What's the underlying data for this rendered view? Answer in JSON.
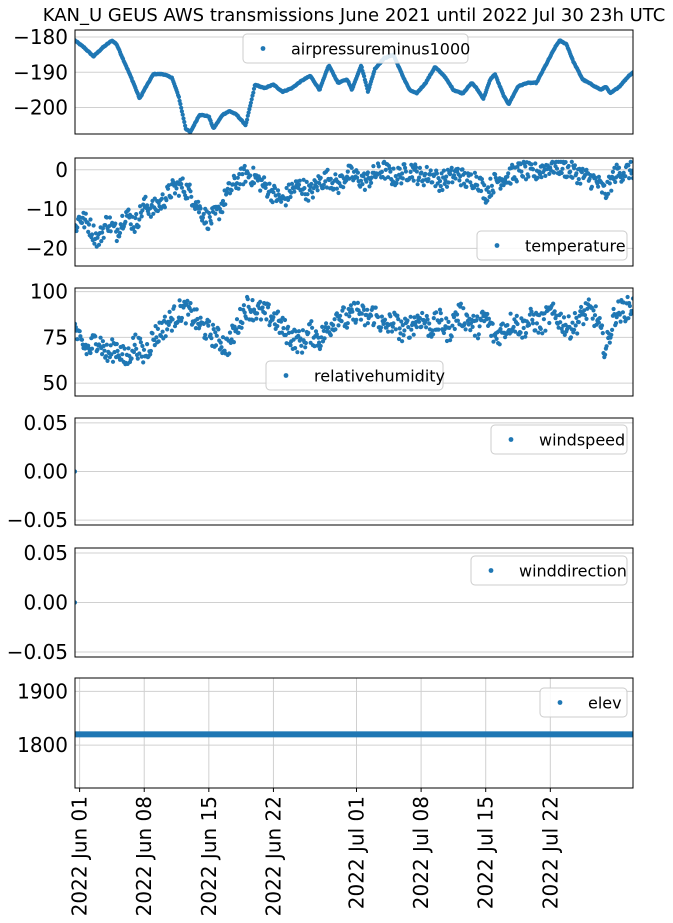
{
  "title": "KAN_U GEUS AWS transmissions June 2021 until 2022 Jul 30 23h UTC",
  "colors": {
    "series": "#1f77b4",
    "grid": "#d0d0d0"
  },
  "chart_data": {
    "type": "scatter",
    "x_axis": {
      "type": "date",
      "range": [
        "2022-05-31T12:00",
        "2022-07-30T23:00"
      ],
      "ticks": [
        "2022-06-01",
        "2022-06-08",
        "2022-06-15",
        "2022-06-22",
        "2022-07-01",
        "2022-07-08",
        "2022-07-15",
        "2022-07-22"
      ],
      "tick_labels": [
        "2022 Jun 01",
        "2022 Jun 08",
        "2022 Jun 15",
        "2022 Jun 22",
        "2022 Jul 01",
        "2022 Jul 08",
        "2022 Jul 15",
        "2022 Jul 22"
      ],
      "grid": true
    },
    "panels": [
      {
        "series": "airpressureminus1000",
        "legend": "top-center",
        "ylim": [
          -207.5,
          -178
        ],
        "yticks": [
          -180,
          -190,
          -200
        ],
        "ytick_labels": [
          "−180",
          "−190",
          "−200"
        ],
        "grid": true,
        "key_points": [
          [
            "2022-05-31T12:00",
            -181
          ],
          [
            "2022-06-01T12:00",
            -183
          ],
          [
            "2022-06-02T12:00",
            -185.5
          ],
          [
            "2022-06-03T12:00",
            -183
          ],
          [
            "2022-06-04T12:00",
            -181
          ],
          [
            "2022-06-05T00:00",
            -182
          ],
          [
            "2022-06-06T00:00",
            -188
          ],
          [
            "2022-06-06T20:00",
            -193
          ],
          [
            "2022-06-07T12:00",
            -197.5
          ],
          [
            "2022-06-08T00:00",
            -195
          ],
          [
            "2022-06-09T00:00",
            -190.5
          ],
          [
            "2022-06-10T00:00",
            -190.5
          ],
          [
            "2022-06-11T00:00",
            -191.5
          ],
          [
            "2022-06-11T18:00",
            -197
          ],
          [
            "2022-06-12T12:00",
            -206
          ],
          [
            "2022-06-13T00:00",
            -207
          ],
          [
            "2022-06-14T00:00",
            -202
          ],
          [
            "2022-06-15T00:00",
            -202.5
          ],
          [
            "2022-06-15T12:00",
            -206
          ],
          [
            "2022-06-16T12:00",
            -202
          ],
          [
            "2022-06-17T06:00",
            -201
          ],
          [
            "2022-06-18T00:00",
            -202
          ],
          [
            "2022-06-19T00:00",
            -205
          ],
          [
            "2022-06-19T18:00",
            -196.5
          ],
          [
            "2022-06-20T00:00",
            -193.5
          ],
          [
            "2022-06-21T00:00",
            -194.5
          ],
          [
            "2022-06-22T00:00",
            -193.5
          ],
          [
            "2022-06-23T00:00",
            -195.5
          ],
          [
            "2022-06-24T00:00",
            -194.5
          ],
          [
            "2022-06-25T00:00",
            -192.5
          ],
          [
            "2022-06-26T00:00",
            -191
          ],
          [
            "2022-06-27T00:00",
            -195
          ],
          [
            "2022-06-28T00:00",
            -188
          ],
          [
            "2022-06-29T00:00",
            -193
          ],
          [
            "2022-06-30T00:00",
            -192
          ],
          [
            "2022-06-30T12:00",
            -195
          ],
          [
            "2022-07-01T12:00",
            -188
          ],
          [
            "2022-07-02T06:00",
            -195.5
          ],
          [
            "2022-07-03T00:00",
            -189
          ],
          [
            "2022-07-04T00:00",
            -186
          ],
          [
            "2022-07-05T00:00",
            -185
          ],
          [
            "2022-07-06T00:00",
            -191
          ],
          [
            "2022-07-06T18:00",
            -195
          ],
          [
            "2022-07-07T12:00",
            -196
          ],
          [
            "2022-07-08T12:00",
            -193
          ],
          [
            "2022-07-09T12:00",
            -188.5
          ],
          [
            "2022-07-10T12:00",
            -191
          ],
          [
            "2022-07-11T12:00",
            -195
          ],
          [
            "2022-07-12T12:00",
            -196
          ],
          [
            "2022-07-13T12:00",
            -193
          ],
          [
            "2022-07-14T00:00",
            -194.5
          ],
          [
            "2022-07-14T18:00",
            -197.5
          ],
          [
            "2022-07-15T12:00",
            -192
          ],
          [
            "2022-07-16T00:00",
            -190.5
          ],
          [
            "2022-07-17T00:00",
            -197
          ],
          [
            "2022-07-17T12:00",
            -199
          ],
          [
            "2022-07-18T12:00",
            -194
          ],
          [
            "2022-07-19T12:00",
            -193
          ],
          [
            "2022-07-20T12:00",
            -193
          ],
          [
            "2022-07-21T12:00",
            -188
          ],
          [
            "2022-07-22T12:00",
            -183
          ],
          [
            "2022-07-23T00:00",
            -181
          ],
          [
            "2022-07-23T18:00",
            -182
          ],
          [
            "2022-07-24T12:00",
            -187
          ],
          [
            "2022-07-25T12:00",
            -192
          ],
          [
            "2022-07-26T12:00",
            -193.5
          ],
          [
            "2022-07-27T12:00",
            -195
          ],
          [
            "2022-07-28T00:00",
            -194
          ],
          [
            "2022-07-28T12:00",
            -196
          ],
          [
            "2022-07-29T12:00",
            -194
          ],
          [
            "2022-07-30T12:00",
            -191
          ],
          [
            "2022-07-30T23:00",
            -190
          ]
        ]
      },
      {
        "series": "temperature",
        "legend": "bottom-right",
        "ylim": [
          -24.5,
          3
        ],
        "yticks": [
          0,
          -10,
          -20
        ],
        "ytick_labels": [
          "0",
          "−10",
          "−20"
        ],
        "grid": true,
        "key_points": [
          [
            "2022-05-31T12:00",
            -15
          ],
          [
            "2022-06-01T00:00",
            -12
          ],
          [
            "2022-06-02T00:00",
            -14
          ],
          [
            "2022-06-03T00:00",
            -18
          ],
          [
            "2022-06-04T00:00",
            -13
          ],
          [
            "2022-06-05T00:00",
            -16
          ],
          [
            "2022-06-06T00:00",
            -11
          ],
          [
            "2022-06-07T00:00",
            -14
          ],
          [
            "2022-06-08T00:00",
            -9
          ],
          [
            "2022-06-09T00:00",
            -10
          ],
          [
            "2022-06-10T00:00",
            -8
          ],
          [
            "2022-06-11T00:00",
            -5
          ],
          [
            "2022-06-12T00:00",
            -4
          ],
          [
            "2022-06-13T00:00",
            -6
          ],
          [
            "2022-06-14T00:00",
            -10
          ],
          [
            "2022-06-15T00:00",
            -13
          ],
          [
            "2022-06-16T00:00",
            -11
          ],
          [
            "2022-06-17T00:00",
            -6
          ],
          [
            "2022-06-18T00:00",
            -3
          ],
          [
            "2022-06-19T00:00",
            -1
          ],
          [
            "2022-06-20T00:00",
            -2
          ],
          [
            "2022-06-21T00:00",
            -4
          ],
          [
            "2022-06-22T00:00",
            -6
          ],
          [
            "2022-06-23T00:00",
            -8
          ],
          [
            "2022-06-24T00:00",
            -5
          ],
          [
            "2022-06-25T00:00",
            -4
          ],
          [
            "2022-06-26T00:00",
            -6
          ],
          [
            "2022-06-27T00:00",
            -3
          ],
          [
            "2022-06-28T00:00",
            -2
          ],
          [
            "2022-06-29T00:00",
            -4
          ],
          [
            "2022-06-30T00:00",
            -1
          ],
          [
            "2022-07-01T00:00",
            -2
          ],
          [
            "2022-07-02T00:00",
            -3
          ],
          [
            "2022-07-03T00:00",
            -1
          ],
          [
            "2022-07-04T00:00",
            0
          ],
          [
            "2022-07-05T00:00",
            -2
          ],
          [
            "2022-07-06T00:00",
            -1
          ],
          [
            "2022-07-07T00:00",
            0
          ],
          [
            "2022-07-08T00:00",
            -2
          ],
          [
            "2022-07-09T00:00",
            -1
          ],
          [
            "2022-07-10T00:00",
            -3
          ],
          [
            "2022-07-11T00:00",
            -2
          ],
          [
            "2022-07-12T00:00",
            -1
          ],
          [
            "2022-07-13T00:00",
            -3
          ],
          [
            "2022-07-14T00:00",
            -2
          ],
          [
            "2022-07-15T00:00",
            -6
          ],
          [
            "2022-07-16T00:00",
            -3
          ],
          [
            "2022-07-17T00:00",
            -2
          ],
          [
            "2022-07-18T00:00",
            -1
          ],
          [
            "2022-07-19T00:00",
            0
          ],
          [
            "2022-07-20T00:00",
            -1
          ],
          [
            "2022-07-21T00:00",
            0
          ],
          [
            "2022-07-22T00:00",
            1
          ],
          [
            "2022-07-23T00:00",
            1
          ],
          [
            "2022-07-24T00:00",
            0
          ],
          [
            "2022-07-25T00:00",
            -1
          ],
          [
            "2022-07-26T00:00",
            -2
          ],
          [
            "2022-07-27T00:00",
            -3
          ],
          [
            "2022-07-28T00:00",
            -6
          ],
          [
            "2022-07-29T00:00",
            -1
          ],
          [
            "2022-07-30T23:00",
            0
          ]
        ]
      },
      {
        "series": "relativehumidity",
        "legend": "bottom-center",
        "ylim": [
          43,
          102
        ],
        "yticks": [
          100,
          75,
          50
        ],
        "ytick_labels": [
          "100",
          "75",
          "50"
        ],
        "grid": true,
        "key_points": [
          [
            "2022-05-31T12:00",
            80
          ],
          [
            "2022-06-01T00:00",
            72
          ],
          [
            "2022-06-02T00:00",
            68
          ],
          [
            "2022-06-03T00:00",
            75
          ],
          [
            "2022-06-04T00:00",
            65
          ],
          [
            "2022-06-05T00:00",
            70
          ],
          [
            "2022-06-06T00:00",
            62
          ],
          [
            "2022-06-07T00:00",
            72
          ],
          [
            "2022-06-08T00:00",
            65
          ],
          [
            "2022-06-09T00:00",
            75
          ],
          [
            "2022-06-10T00:00",
            80
          ],
          [
            "2022-06-11T00:00",
            85
          ],
          [
            "2022-06-12T00:00",
            90
          ],
          [
            "2022-06-13T00:00",
            88
          ],
          [
            "2022-06-14T00:00",
            82
          ],
          [
            "2022-06-15T00:00",
            78
          ],
          [
            "2022-06-16T00:00",
            74
          ],
          [
            "2022-06-17T00:00",
            70
          ],
          [
            "2022-06-18T00:00",
            80
          ],
          [
            "2022-06-19T00:00",
            92
          ],
          [
            "2022-06-20T00:00",
            90
          ],
          [
            "2022-06-21T00:00",
            88
          ],
          [
            "2022-06-22T00:00",
            86
          ],
          [
            "2022-06-23T00:00",
            80
          ],
          [
            "2022-06-24T00:00",
            75
          ],
          [
            "2022-06-25T00:00",
            72
          ],
          [
            "2022-06-26T00:00",
            78
          ],
          [
            "2022-06-27T00:00",
            74
          ],
          [
            "2022-06-28T00:00",
            80
          ],
          [
            "2022-06-29T00:00",
            88
          ],
          [
            "2022-06-30T00:00",
            84
          ],
          [
            "2022-07-01T00:00",
            90
          ],
          [
            "2022-07-02T00:00",
            85
          ],
          [
            "2022-07-03T00:00",
            88
          ],
          [
            "2022-07-04T00:00",
            80
          ],
          [
            "2022-07-05T00:00",
            84
          ],
          [
            "2022-07-06T00:00",
            78
          ],
          [
            "2022-07-07T00:00",
            82
          ],
          [
            "2022-07-08T00:00",
            86
          ],
          [
            "2022-07-09T00:00",
            80
          ],
          [
            "2022-07-10T00:00",
            84
          ],
          [
            "2022-07-11T00:00",
            78
          ],
          [
            "2022-07-12T00:00",
            88
          ],
          [
            "2022-07-13T00:00",
            85
          ],
          [
            "2022-07-14T00:00",
            80
          ],
          [
            "2022-07-15T00:00",
            86
          ],
          [
            "2022-07-16T00:00",
            75
          ],
          [
            "2022-07-17T00:00",
            80
          ],
          [
            "2022-07-18T00:00",
            84
          ],
          [
            "2022-07-19T00:00",
            80
          ],
          [
            "2022-07-20T00:00",
            85
          ],
          [
            "2022-07-21T00:00",
            82
          ],
          [
            "2022-07-22T00:00",
            88
          ],
          [
            "2022-07-23T00:00",
            85
          ],
          [
            "2022-07-24T00:00",
            80
          ],
          [
            "2022-07-25T00:00",
            84
          ],
          [
            "2022-07-26T00:00",
            90
          ],
          [
            "2022-07-27T00:00",
            86
          ],
          [
            "2022-07-28T00:00",
            68
          ],
          [
            "2022-07-29T00:00",
            88
          ],
          [
            "2022-07-30T23:00",
            92
          ]
        ]
      },
      {
        "series": "windspeed",
        "legend": "top-right",
        "ylim": [
          -0.055,
          0.055
        ],
        "yticks": [
          0.05,
          0.0,
          -0.05
        ],
        "ytick_labels": [
          "0.05",
          "0.00",
          "−0.05"
        ],
        "grid": true,
        "points": [
          [
            "2022-05-31T12:00",
            0.0
          ]
        ]
      },
      {
        "series": "winddirection",
        "legend": "top-right",
        "ylim": [
          -0.055,
          0.055
        ],
        "yticks": [
          0.05,
          0.0,
          -0.05
        ],
        "ytick_labels": [
          "0.05",
          "0.00",
          "−0.05"
        ],
        "grid": true,
        "points": [
          [
            "2022-05-31T12:00",
            0.0
          ]
        ]
      },
      {
        "series": "elev",
        "legend": "top-right",
        "ylim": [
          1720,
          1925
        ],
        "yticks": [
          1900,
          1800
        ],
        "ytick_labels": [
          "1900",
          "1800"
        ],
        "grid": true,
        "constant_value": 1820
      }
    ]
  }
}
